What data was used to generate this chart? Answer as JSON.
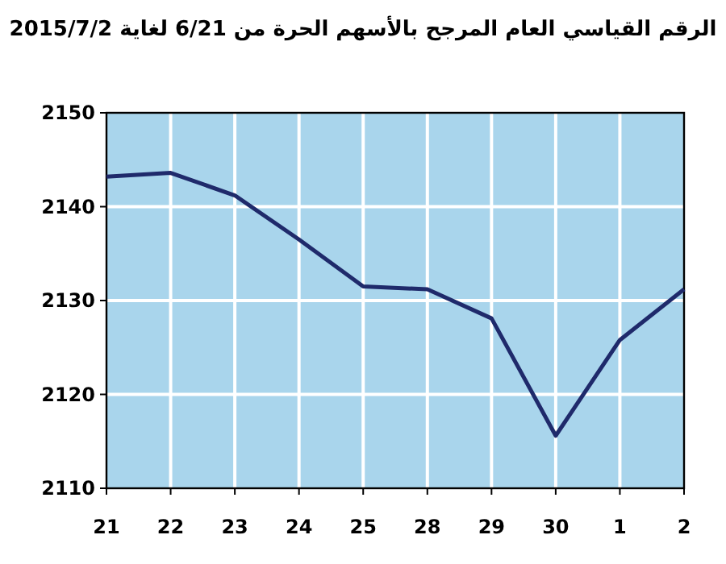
{
  "chart_data": {
    "type": "line",
    "title": "الرقم القياسي العام المرجح بالأسهم الحرة من 6/21 لغاية 2015/7/2",
    "categories": [
      "21",
      "22",
      "23",
      "24",
      "25",
      "28",
      "29",
      "30",
      "1",
      "2"
    ],
    "series": [
      {
        "color": "#1f2a6b",
        "values": [
          2143.2,
          2143.6,
          2141.2,
          2136.5,
          2131.5,
          2131.2,
          2128.1,
          2115.6,
          2125.8,
          2131.2
        ]
      }
    ],
    "ylim": [
      2110,
      2150
    ],
    "yticks": [
      2110,
      2120,
      2130,
      2140,
      2150
    ],
    "grid": true,
    "marker": "none",
    "line_style": "solid"
  }
}
